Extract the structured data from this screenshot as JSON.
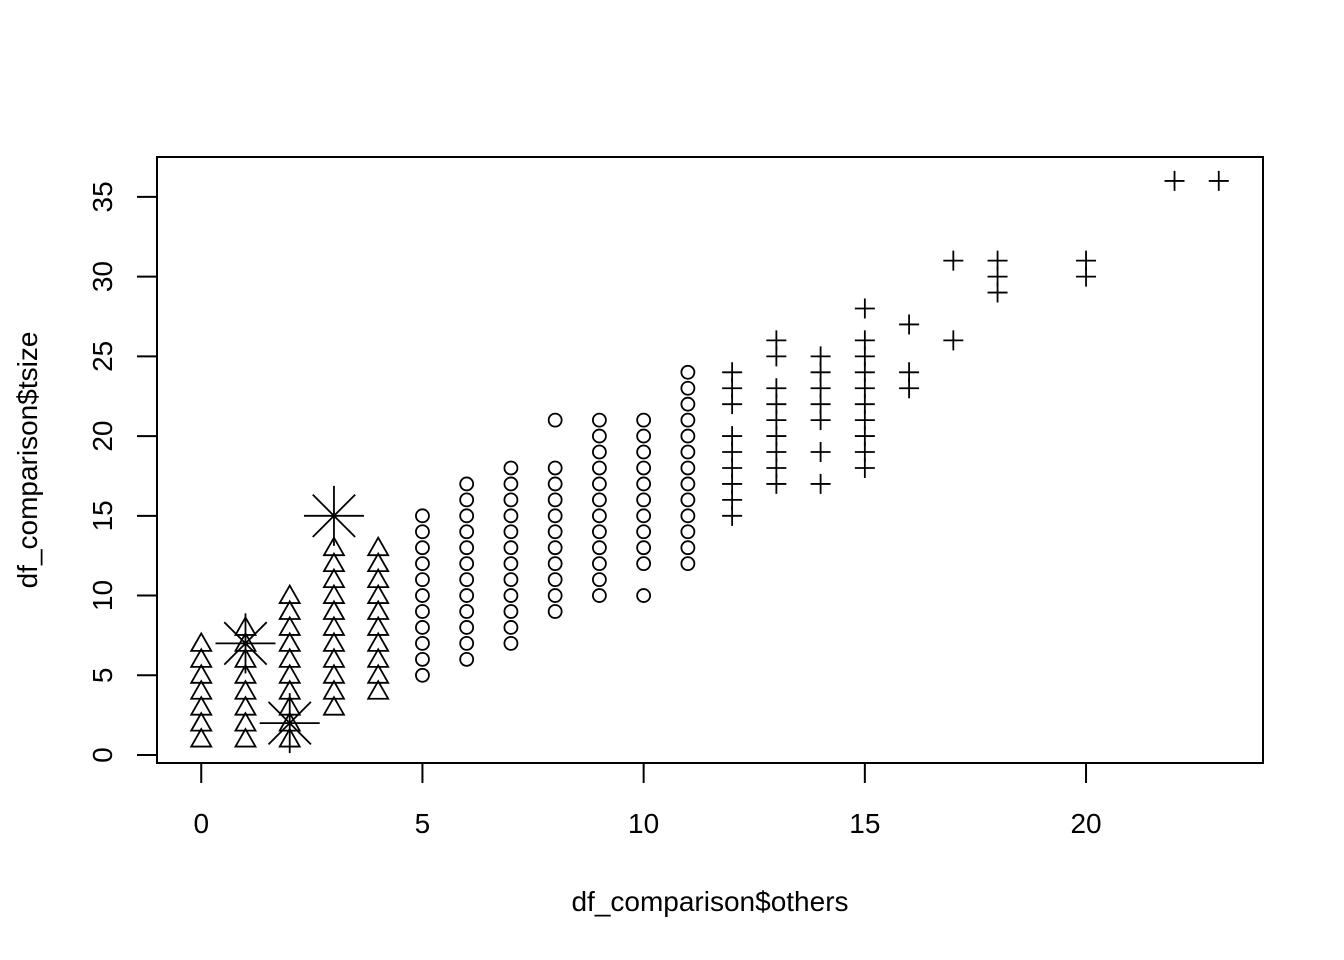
{
  "chart_data": {
    "type": "scatter",
    "title": "",
    "xlabel": "df_comparison$others",
    "ylabel": "df_comparison$tsize",
    "xlim": [
      -1,
      24
    ],
    "ylim": [
      -0.5,
      37.5
    ],
    "grid": false,
    "x_ticks": [
      "0",
      "5",
      "10",
      "15",
      "20"
    ],
    "y_ticks": [
      "0",
      "5",
      "10",
      "15",
      "20",
      "25",
      "30",
      "35"
    ],
    "series": [
      {
        "marker": "triangle",
        "points": [
          [
            0,
            1
          ],
          [
            0,
            2
          ],
          [
            0,
            3
          ],
          [
            0,
            4
          ],
          [
            0,
            5
          ],
          [
            0,
            6
          ],
          [
            0,
            7
          ],
          [
            1,
            1
          ],
          [
            1,
            2
          ],
          [
            1,
            3
          ],
          [
            1,
            4
          ],
          [
            1,
            5
          ],
          [
            1,
            6
          ],
          [
            1,
            7
          ],
          [
            1,
            8
          ],
          [
            2,
            1
          ],
          [
            2,
            2
          ],
          [
            2,
            3
          ],
          [
            2,
            4
          ],
          [
            2,
            5
          ],
          [
            2,
            6
          ],
          [
            2,
            7
          ],
          [
            2,
            8
          ],
          [
            2,
            9
          ],
          [
            2,
            10
          ],
          [
            3,
            3
          ],
          [
            3,
            4
          ],
          [
            3,
            5
          ],
          [
            3,
            6
          ],
          [
            3,
            7
          ],
          [
            3,
            8
          ],
          [
            3,
            9
          ],
          [
            3,
            10
          ],
          [
            3,
            11
          ],
          [
            3,
            12
          ],
          [
            3,
            13
          ],
          [
            4,
            4
          ],
          [
            4,
            5
          ],
          [
            4,
            6
          ],
          [
            4,
            7
          ],
          [
            4,
            8
          ],
          [
            4,
            9
          ],
          [
            4,
            10
          ],
          [
            4,
            11
          ],
          [
            4,
            12
          ],
          [
            4,
            13
          ]
        ]
      },
      {
        "marker": "star",
        "points": [
          [
            1,
            7
          ],
          [
            2,
            2
          ],
          [
            3,
            15
          ]
        ]
      },
      {
        "marker": "circle",
        "points": [
          [
            5,
            5
          ],
          [
            5,
            6
          ],
          [
            5,
            7
          ],
          [
            5,
            8
          ],
          [
            5,
            9
          ],
          [
            5,
            10
          ],
          [
            5,
            11
          ],
          [
            5,
            12
          ],
          [
            5,
            13
          ],
          [
            5,
            14
          ],
          [
            5,
            15
          ],
          [
            6,
            6
          ],
          [
            6,
            7
          ],
          [
            6,
            8
          ],
          [
            6,
            9
          ],
          [
            6,
            10
          ],
          [
            6,
            11
          ],
          [
            6,
            12
          ],
          [
            6,
            13
          ],
          [
            6,
            14
          ],
          [
            6,
            15
          ],
          [
            6,
            16
          ],
          [
            6,
            17
          ],
          [
            7,
            7
          ],
          [
            7,
            8
          ],
          [
            7,
            9
          ],
          [
            7,
            10
          ],
          [
            7,
            11
          ],
          [
            7,
            12
          ],
          [
            7,
            13
          ],
          [
            7,
            14
          ],
          [
            7,
            15
          ],
          [
            7,
            16
          ],
          [
            7,
            17
          ],
          [
            7,
            18
          ],
          [
            8,
            9
          ],
          [
            8,
            10
          ],
          [
            8,
            11
          ],
          [
            8,
            12
          ],
          [
            8,
            13
          ],
          [
            8,
            14
          ],
          [
            8,
            15
          ],
          [
            8,
            16
          ],
          [
            8,
            17
          ],
          [
            8,
            18
          ],
          [
            8,
            21
          ],
          [
            9,
            10
          ],
          [
            9,
            11
          ],
          [
            9,
            12
          ],
          [
            9,
            13
          ],
          [
            9,
            14
          ],
          [
            9,
            15
          ],
          [
            9,
            16
          ],
          [
            9,
            17
          ],
          [
            9,
            18
          ],
          [
            9,
            19
          ],
          [
            9,
            20
          ],
          [
            9,
            21
          ],
          [
            10,
            10
          ],
          [
            10,
            12
          ],
          [
            10,
            13
          ],
          [
            10,
            14
          ],
          [
            10,
            15
          ],
          [
            10,
            16
          ],
          [
            10,
            17
          ],
          [
            10,
            18
          ],
          [
            10,
            19
          ],
          [
            10,
            20
          ],
          [
            10,
            21
          ],
          [
            11,
            12
          ],
          [
            11,
            13
          ],
          [
            11,
            14
          ],
          [
            11,
            15
          ],
          [
            11,
            16
          ],
          [
            11,
            17
          ],
          [
            11,
            18
          ],
          [
            11,
            19
          ],
          [
            11,
            20
          ],
          [
            11,
            21
          ],
          [
            11,
            22
          ],
          [
            11,
            23
          ],
          [
            11,
            24
          ]
        ]
      },
      {
        "marker": "plus",
        "points": [
          [
            12,
            15
          ],
          [
            12,
            16
          ],
          [
            12,
            17
          ],
          [
            12,
            18
          ],
          [
            12,
            19
          ],
          [
            12,
            20
          ],
          [
            12,
            22
          ],
          [
            12,
            23
          ],
          [
            12,
            24
          ],
          [
            13,
            17
          ],
          [
            13,
            18
          ],
          [
            13,
            19
          ],
          [
            13,
            20
          ],
          [
            13,
            21
          ],
          [
            13,
            22
          ],
          [
            13,
            23
          ],
          [
            13,
            25
          ],
          [
            13,
            26
          ],
          [
            14,
            17
          ],
          [
            14,
            19
          ],
          [
            14,
            21
          ],
          [
            14,
            22
          ],
          [
            14,
            23
          ],
          [
            14,
            24
          ],
          [
            14,
            25
          ],
          [
            15,
            18
          ],
          [
            15,
            19
          ],
          [
            15,
            20
          ],
          [
            15,
            21
          ],
          [
            15,
            22
          ],
          [
            15,
            23
          ],
          [
            15,
            24
          ],
          [
            15,
            25
          ],
          [
            15,
            26
          ],
          [
            15,
            28
          ],
          [
            16,
            23
          ],
          [
            16,
            24
          ],
          [
            16,
            27
          ],
          [
            17,
            26
          ],
          [
            17,
            31
          ],
          [
            18,
            29
          ],
          [
            18,
            30
          ],
          [
            18,
            31
          ],
          [
            20,
            30
          ],
          [
            20,
            31
          ],
          [
            22,
            36
          ],
          [
            23,
            36
          ]
        ]
      }
    ]
  }
}
